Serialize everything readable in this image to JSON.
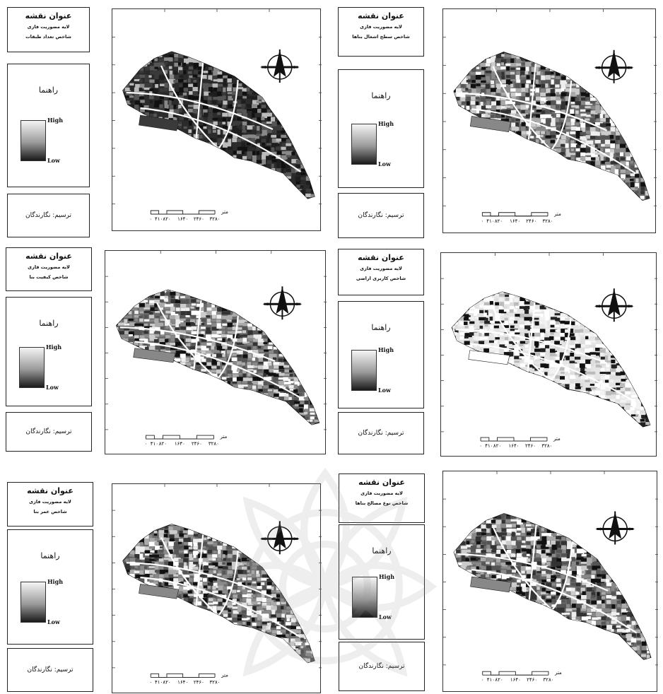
{
  "colors": {
    "frame": "#222222",
    "ramp_high": "#f4f4f4",
    "ramp_low": "#1a1a1a",
    "watermark": "#c9c9c9"
  },
  "panels": [
    {
      "id": "p1",
      "title": "عنوان نقشه",
      "subtitle1": "لایه مضوریت فازی",
      "subtitle2": "شاخص تعداد طبقات",
      "legend_title": "راهنما",
      "legend_high": "High",
      "legend_low": "Low",
      "credit": "ترسیم: نگارندگان",
      "scale_unit": "متر",
      "scale_labels": [
        "۰",
        "۴۱۰",
        "۸۲۰",
        "۱۶۴۰",
        "۲۴۶۰",
        "۳۲۸۰"
      ],
      "shade": "dark"
    },
    {
      "id": "p2",
      "title": "عنوان نقشه",
      "subtitle1": "لایه مضوریت فازی",
      "subtitle2": "شاخص سطح اشغال بناها",
      "legend_title": "راهنما",
      "legend_high": "High",
      "legend_low": "Low",
      "credit": "ترسیم: نگارندگان",
      "scale_unit": "متر",
      "scale_labels": [
        "۰",
        "۴۱۰",
        "۸۲۰",
        "۱۶۴۰",
        "۲۴۶۰",
        "۳۲۸۰"
      ],
      "shade": "mixed"
    },
    {
      "id": "p3",
      "title": "عنوان نقشه",
      "subtitle1": "لایه مضوریت فازی",
      "subtitle2": "شاخص کیفیت بنا",
      "legend_title": "راهنما",
      "legend_high": "High",
      "legend_low": "Low",
      "credit": "ترسیم: نگارندگان",
      "scale_unit": "متر",
      "scale_labels": [
        "۰",
        "۴۱۰",
        "۸۲۰",
        "۱۶۴۰",
        "۲۴۶۰",
        "۳۲۸۰"
      ],
      "shade": "mixed"
    },
    {
      "id": "p4",
      "title": "عنوان نقشه",
      "subtitle1": "لایه مضوریت فازی",
      "subtitle2": "شاخص کاربری اراضی",
      "legend_title": "راهنما",
      "legend_high": "High",
      "legend_low": "Low",
      "credit": "ترسیم: نگارندگان",
      "scale_unit": "متر",
      "scale_labels": [
        "۰",
        "۴۱۰",
        "۸۲۰",
        "۱۶۴۰",
        "۲۴۶۰",
        "۳۲۸۰"
      ],
      "shade": "light"
    },
    {
      "id": "p5",
      "title": "عنوان نقشه",
      "subtitle1": "لایه مضوریت فازی",
      "subtitle2": "شاخص عمر بنا",
      "legend_title": "راهنما",
      "legend_high": "High",
      "legend_low": "Low",
      "credit": "ترسیم: نگارندگان",
      "scale_unit": "متر",
      "scale_labels": [
        "۰",
        "۴۱۰",
        "۸۲۰",
        "۱۶۴۰",
        "۲۴۶۰",
        "۳۲۸۰"
      ],
      "shade": "mixed"
    },
    {
      "id": "p6",
      "title": "عنوان نقشه",
      "subtitle1": "لایه مضوریت فازی",
      "subtitle2": "شاخص نوع مصالح بناها",
      "legend_title": "راهنما",
      "legend_high": "High",
      "legend_low": "Low",
      "credit": "ترسیم: نگارندگان",
      "scale_unit": "متر",
      "scale_labels": [
        "۰",
        "۴۱۰",
        "۸۲۰",
        "۱۶۴۰",
        "۲۴۶۰",
        "۳۲۸۰"
      ],
      "shade": "mixed"
    }
  ]
}
